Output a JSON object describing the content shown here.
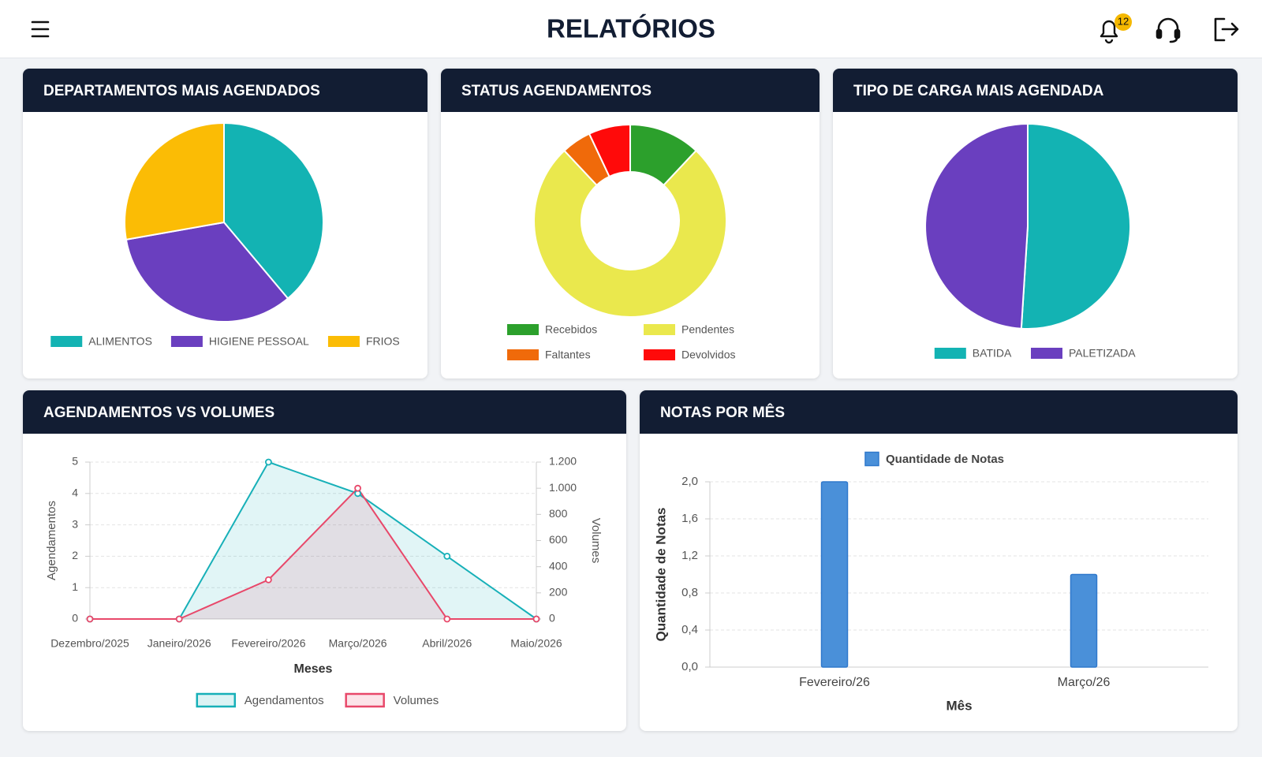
{
  "header": {
    "title": "RELATÓRIOS",
    "notification_count": 12
  },
  "chart_data": [
    {
      "type": "pie",
      "title": "DEPARTAMENTOS MAIS AGENDADOS",
      "categories": [
        "ALIMENTOS",
        "HIGIENE PESSOAL",
        "FRIOS"
      ],
      "values": [
        7,
        6,
        5
      ],
      "colors": [
        "#13b3b3",
        "#6a3fbf",
        "#fbbc05"
      ]
    },
    {
      "type": "donut",
      "title": "STATUS AGENDAMENTOS",
      "categories": [
        "Recebidos",
        "Pendentes",
        "Faltantes",
        "Devolvidos"
      ],
      "values": [
        12,
        76,
        5,
        7
      ],
      "colors": [
        "#2ca02c",
        "#eae84d",
        "#f06a0a",
        "#ff0a0a"
      ]
    },
    {
      "type": "pie",
      "title": "TIPO DE CARGA MAIS AGENDADA",
      "categories": [
        "BATIDA",
        "PALETIZADA"
      ],
      "values": [
        51,
        49
      ],
      "colors": [
        "#13b3b3",
        "#6a3fbf"
      ]
    },
    {
      "type": "line",
      "title": "AGENDAMENTOS VS VOLUMES",
      "categories": [
        "Dezembro/2025",
        "Janeiro/2026",
        "Fevereiro/2026",
        "Março/2026",
        "Abril/2026",
        "Maio/2026"
      ],
      "series": [
        {
          "name": "Agendamentos",
          "color": "#17b0b8",
          "values": [
            0,
            0,
            5,
            4,
            2,
            0
          ]
        },
        {
          "name": "Volumes",
          "color": "#e8486a",
          "axis": "y2",
          "values": [
            0,
            0,
            300,
            1000,
            0,
            0
          ]
        }
      ],
      "ylim": [
        0,
        5
      ],
      "yticks": [
        0,
        1,
        2,
        3,
        4,
        5
      ],
      "y2lim": [
        0,
        1200
      ],
      "y2ticks": [
        0,
        200,
        400,
        600,
        800,
        {
          "value": 1000,
          "label": "1.000"
        },
        {
          "value": 1200,
          "label": "1.200"
        }
      ],
      "ylabel": "Agendamentos",
      "y2label": "Volumes",
      "xlabel": "Meses",
      "grid": true
    },
    {
      "type": "bar",
      "title": "NOTAS POR MÊS",
      "categories": [
        "Fevereiro/26",
        "Março/26"
      ],
      "series": [
        {
          "name": "Quantidade de Notas",
          "color": "#4a90d9",
          "values": [
            2,
            1
          ]
        }
      ],
      "ylim": [
        0,
        2
      ],
      "yticks": [
        {
          "value": 0,
          "label": "0,0"
        },
        {
          "value": 0.4,
          "label": "0,4"
        },
        {
          "value": 0.8,
          "label": "0,8"
        },
        {
          "value": 1.2,
          "label": "1,2"
        },
        {
          "value": 1.6,
          "label": "1,6"
        },
        {
          "value": 2,
          "label": "2,0"
        }
      ],
      "ylabel": "Quantidade de Notas",
      "xlabel": "Mês",
      "grid": true
    }
  ]
}
